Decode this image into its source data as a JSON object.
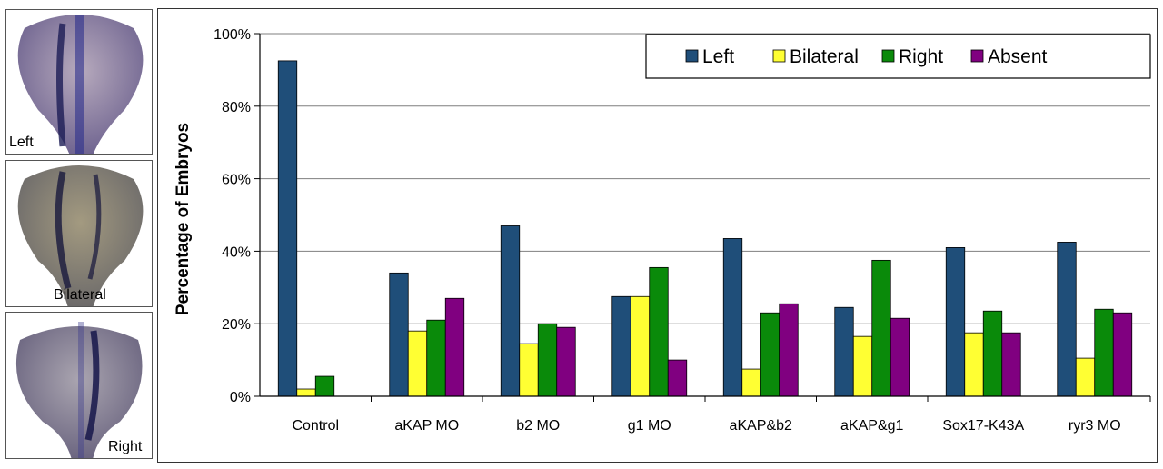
{
  "panels": [
    {
      "label": "Left"
    },
    {
      "label": "Bilateral"
    },
    {
      "label": "Right"
    }
  ],
  "chart_data": {
    "type": "bar",
    "title": "",
    "xlabel": "",
    "ylabel": "Percentage of Embryos",
    "ylim": [
      0,
      100
    ],
    "yticks": [
      "0%",
      "20%",
      "40%",
      "60%",
      "80%",
      "100%"
    ],
    "grid": true,
    "legend_position": "top-right",
    "categories": [
      "Control",
      "aKAP MO",
      "b2 MO",
      "g1 MO",
      "aKAP&b2",
      "aKAP&g1",
      "Sox17-K43A",
      "ryr3 MO"
    ],
    "series": [
      {
        "name": "Left",
        "color": "#1f4e79",
        "values": [
          92.5,
          34,
          47,
          27.5,
          43.5,
          24.5,
          41,
          42.5
        ]
      },
      {
        "name": "Bilateral",
        "color": "#ffff33",
        "values": [
          2,
          18,
          14.5,
          27.5,
          7.5,
          16.5,
          17.5,
          10.5
        ]
      },
      {
        "name": "Right",
        "color": "#0a8a0a",
        "values": [
          5.5,
          21,
          20,
          35.5,
          23,
          37.5,
          23.5,
          24
        ]
      },
      {
        "name": "Absent",
        "color": "#800080",
        "values": [
          0,
          27,
          19,
          10,
          25.5,
          21.5,
          17.5,
          23
        ]
      }
    ]
  }
}
